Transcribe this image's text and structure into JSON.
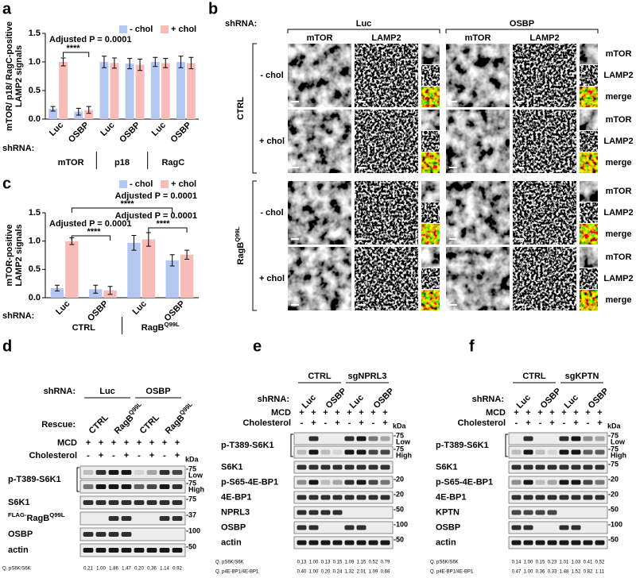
{
  "chart_data": [
    {
      "type": "bar",
      "panel": "a",
      "ylabel": [
        "mTOR/ p18/ RagC-positive",
        "LAMP2 signals"
      ],
      "xlabel": "shRNA:",
      "categories": [
        "Luc",
        "OSBP",
        "Luc",
        "OSBP",
        "Luc",
        "OSBP"
      ],
      "groups": [
        "mTOR",
        "p18",
        "RagC"
      ],
      "series": [
        {
          "name": "- chol",
          "color": "#b4c7f0",
          "values": [
            0.18,
            0.13,
            1.0,
            0.97,
            1.0,
            1.0
          ],
          "errors": [
            0.04,
            0.06,
            0.1,
            0.09,
            0.08,
            0.1
          ]
        },
        {
          "name": "+ chol",
          "color": "#f7bcb8",
          "values": [
            1.0,
            0.16,
            0.98,
            0.95,
            0.98,
            0.98
          ],
          "errors": [
            0.07,
            0.06,
            0.09,
            0.1,
            0.08,
            0.1
          ]
        }
      ],
      "ylim": [
        0,
        1.5
      ],
      "yticks": [
        {
          "value": 0,
          "label": "0.0"
        },
        {
          "value": 0.5,
          "label": "0.5"
        },
        {
          "value": 1,
          "label": "1.0"
        },
        {
          "value": 1.5,
          "label": "1.5"
        }
      ],
      "legend": "upper right",
      "annotations": [
        "Adjusted P = 0.0001",
        "****"
      ]
    },
    {
      "type": "bar",
      "panel": "c",
      "ylabel": [
        "mTOR-positive",
        "LAMP2 signals"
      ],
      "xlabel": "shRNA:",
      "categories": [
        "Luc",
        "OSBP",
        "Luc",
        "OSBP"
      ],
      "groups": [
        "CTRL",
        {
          "text": "RagB",
          "sup": "Q99L"
        }
      ],
      "series": [
        {
          "name": "- chol",
          "color": "#b4c7f0",
          "values": [
            0.17,
            0.15,
            0.97,
            0.66
          ],
          "errors": [
            0.05,
            0.07,
            0.13,
            0.1
          ]
        },
        {
          "name": "+ chol",
          "color": "#f7bcb8",
          "values": [
            1.0,
            0.13,
            1.03,
            0.76
          ],
          "errors": [
            0.06,
            0.07,
            0.12,
            0.08
          ]
        }
      ],
      "ylim": [
        0,
        1.5
      ],
      "yticks": [
        {
          "value": 0,
          "label": "0.0"
        },
        {
          "value": 0.5,
          "label": "0.5"
        },
        {
          "value": 1,
          "label": "1.0"
        },
        {
          "value": 1.5,
          "label": "1.5"
        }
      ],
      "legend": "upper right",
      "annotations": [
        "Adjusted P = 0.0001",
        "****",
        "Adjusted P = 0.0001",
        "****",
        "Adjusted P = 0.0001",
        "****"
      ]
    }
  ],
  "b": {
    "label": "b",
    "shrna_label": "shRNA:",
    "shrna": [
      "Luc",
      "OSBP"
    ],
    "channels": [
      "mTOR",
      "LAMP2"
    ],
    "channel_colors": [
      "#d7191c",
      "#1a8a3a"
    ],
    "groups": [
      "CTRL",
      {
        "text": "RagB",
        "sup": "Q99L"
      }
    ],
    "conditions": [
      "- chol",
      "+ chol"
    ],
    "inset_labels": [
      "mTOR",
      "LAMP2",
      "merge"
    ]
  },
  "d": {
    "label": "d",
    "headers": [
      {
        "label": "shRNA:",
        "groups": [
          "Luc",
          "OSBP"
        ]
      },
      {
        "label": "Rescue:",
        "rotated": [
          "CTRL",
          {
            "text": "RagB",
            "sup": "Q99L"
          },
          "CTRL",
          {
            "text": "RagB",
            "sup": "Q99L"
          }
        ]
      }
    ],
    "treatments": [
      {
        "label": "MCD",
        "signs": [
          "+",
          "+",
          "+",
          "+",
          "+",
          "+",
          "+",
          "+"
        ]
      },
      {
        "label": "Cholesterol",
        "signs": [
          "-",
          "+",
          "-",
          "+",
          "-",
          "+",
          "-",
          "+"
        ]
      }
    ],
    "kda": "kDa",
    "rows": [
      {
        "label": "p-T389-S6K1",
        "strips": [
          {
            "marker": "-75",
            "note": "Low"
          },
          {
            "marker": "-75",
            "note": "High"
          }
        ]
      },
      {
        "label": "S6K1",
        "marker": "-75"
      },
      {
        "label": {
          "pre": "FLAG-",
          "text": "RagB",
          "sup": "Q99L"
        },
        "marker": "-37"
      },
      {
        "label": "OSBP",
        "marker": "-100"
      },
      {
        "label": "actin",
        "marker": "-50"
      }
    ],
    "quant": [
      {
        "label": "Q. pS6K/S6K",
        "values": [
          "0.21",
          "1.00",
          "1.86",
          "1.47",
          "0.20",
          "0.36",
          "1.14",
          "0.92"
        ]
      }
    ]
  },
  "e": {
    "label": "e",
    "headers": [
      {
        "groups": [
          "CTRL",
          "sgNPRL3"
        ]
      },
      {
        "label": "shRNA:",
        "rotated": [
          "Luc",
          "OSBP",
          "Luc",
          "OSBP"
        ]
      }
    ],
    "treatments": [
      {
        "label": "MCD",
        "signs": [
          "+",
          "+",
          "+",
          "+",
          "+",
          "+",
          "+",
          "+"
        ]
      },
      {
        "label": "Cholesterol",
        "signs": [
          "-",
          "+",
          "-",
          "+",
          "-",
          "+",
          "-",
          "+"
        ]
      }
    ],
    "kda": "kDa",
    "rows": [
      {
        "label": "p-T389-S6K1",
        "strips": [
          {
            "marker": "-75",
            "note": "Low"
          },
          {
            "marker": "-75",
            "note": "High"
          }
        ]
      },
      {
        "label": "S6K1"
      },
      {
        "label": "p-S65-4E-BP1",
        "marker": "-20"
      },
      {
        "label": "4E-BP1",
        "marker": "-20"
      },
      {
        "label": "NPRL3",
        "marker": "-50"
      },
      {
        "label": "OSBP",
        "marker": "-100"
      },
      {
        "label": "actin",
        "marker": "-50"
      }
    ],
    "quant": [
      {
        "label": "Q. pS6K/S6K",
        "values": [
          "0.13",
          "1.00",
          "0.13",
          "0.15",
          "1.09",
          "1.15",
          "0.52",
          "0.79"
        ]
      },
      {
        "label": "Q. p4E-BP1/4E-BP1",
        "values": [
          "0.40",
          "1.00",
          "0.20",
          "0.24",
          "1.32",
          "2.01",
          "1.09",
          "0.68"
        ]
      }
    ]
  },
  "f": {
    "label": "f",
    "headers": [
      {
        "groups": [
          "CTRL",
          "sgKPTN"
        ]
      },
      {
        "label": "shRNA:",
        "rotated": [
          "Luc",
          "OSBP",
          "Luc",
          "OSBP"
        ]
      }
    ],
    "treatments": [
      {
        "label": "MCD",
        "signs": [
          "+",
          "+",
          "+",
          "+",
          "+",
          "+",
          "+",
          "+"
        ]
      },
      {
        "label": "Cholesterol",
        "signs": [
          "-",
          "+",
          "-",
          "+",
          "-",
          "+",
          "-",
          "+"
        ]
      }
    ],
    "kda": "kDa",
    "rows": [
      {
        "label": "p-T389-S6K1",
        "strips": [
          {
            "marker": "-75",
            "note": "Low"
          },
          {
            "marker": "-75",
            "note": "High"
          }
        ]
      },
      {
        "label": "S6K1",
        "marker": "-75"
      },
      {
        "label": "p-S65-4E-BP1",
        "marker": "-20"
      },
      {
        "label": "4E-BP1",
        "marker": "-20"
      },
      {
        "label": "KPTN",
        "marker": "-50"
      },
      {
        "label": "OSBP",
        "marker": "-100"
      },
      {
        "label": "actin",
        "marker": "-50"
      }
    ],
    "quant": [
      {
        "label": "Q. pS6K/S6K",
        "values": [
          "0.14",
          "1.00",
          "0.15",
          "0.23",
          "1.01",
          "1.03",
          "0.41",
          "0.52"
        ]
      },
      {
        "label": "Q. p4E-BP1/4E-BP1",
        "values": [
          "0.47",
          "1.00",
          "0.36",
          "0.33",
          "1.48",
          "1.52",
          "0.82",
          "1.11"
        ]
      }
    ]
  }
}
